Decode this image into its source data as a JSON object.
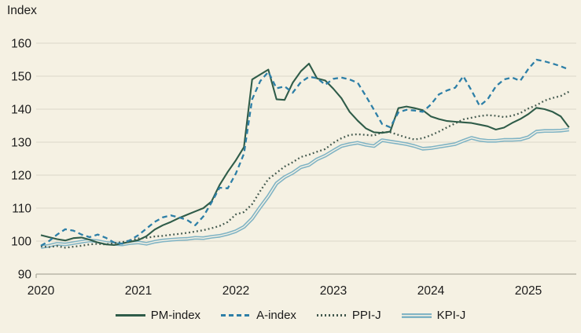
{
  "colors": {
    "background": "#f5f1e3",
    "gridline": "#dcd8c8",
    "axis": "#adab9d",
    "text": "#1c1c1c",
    "pm_index": "#2f5c49",
    "a_index": "#2d7fa7",
    "ppi_j": "#42584d",
    "kpi_j": "#7fb3c4"
  },
  "chart_data": {
    "type": "line",
    "title": "Index",
    "xlabel": "",
    "ylabel": "Index",
    "ylim": [
      90,
      160
    ],
    "grid": "horizontal",
    "legend_position": "bottom-center",
    "y_ticks": [
      90,
      100,
      110,
      120,
      130,
      140,
      150,
      160
    ],
    "x_tick_labels": [
      "2020",
      "2021",
      "2022",
      "2023",
      "2024",
      "2025"
    ],
    "x_frequency": "monthly",
    "x_range": "2020-01 to 2025-06",
    "series": [
      {
        "name": "PM-index",
        "style": "solid",
        "color": "#2f5c49",
        "values": [
          101.8,
          101.2,
          100.6,
          100.2,
          100.9,
          101.1,
          100.4,
          99.6,
          99.0,
          98.8,
          99.3,
          99.8,
          100.3,
          101.5,
          103.5,
          104.8,
          105.8,
          107.0,
          108.0,
          109.0,
          110.0,
          112.0,
          117.0,
          121.0,
          124.5,
          128.5,
          149.0,
          150.5,
          152.0,
          143.0,
          142.8,
          148.0,
          151.5,
          153.8,
          149.3,
          148.7,
          146.2,
          143.3,
          139.2,
          136.5,
          134.2,
          133.0,
          132.8,
          133.2,
          140.3,
          140.8,
          140.3,
          139.7,
          137.8,
          137.0,
          136.4,
          136.2,
          136.0,
          135.8,
          135.3,
          134.8,
          133.8,
          134.4,
          135.8,
          137.0,
          138.5,
          140.4,
          140.0,
          139.2,
          137.8,
          134.5
        ]
      },
      {
        "name": "A-index",
        "style": "dashed",
        "color": "#2d7fa7",
        "values": [
          98.6,
          100.0,
          102.0,
          103.6,
          103.2,
          102.0,
          101.2,
          102.0,
          101.0,
          99.6,
          99.2,
          100.3,
          101.8,
          103.8,
          105.8,
          107.2,
          107.8,
          107.2,
          106.4,
          104.8,
          107.5,
          111.7,
          116.2,
          116.0,
          120.5,
          126.5,
          143.0,
          148.5,
          151.3,
          146.3,
          146.9,
          145.0,
          148.2,
          149.8,
          149.4,
          147.4,
          149.2,
          149.6,
          149.0,
          148.0,
          144.0,
          139.8,
          135.5,
          134.5,
          139.0,
          139.8,
          139.6,
          139.2,
          141.4,
          144.5,
          145.7,
          146.5,
          150.0,
          145.7,
          141.0,
          143.0,
          146.9,
          149.0,
          149.6,
          148.6,
          152.2,
          155.0,
          154.5,
          153.8,
          153.0,
          152.0
        ]
      },
      {
        "name": "PPI-J",
        "style": "dotted",
        "color": "#42584d",
        "values": [
          98.4,
          98.2,
          98.5,
          98.0,
          98.3,
          98.6,
          99.0,
          99.2,
          99.0,
          99.4,
          99.7,
          100.2,
          100.8,
          101.0,
          101.4,
          101.6,
          101.9,
          102.2,
          102.5,
          102.9,
          103.3,
          103.9,
          104.6,
          105.8,
          108.1,
          108.8,
          111.2,
          115.2,
          118.8,
          120.7,
          122.6,
          123.9,
          125.5,
          126.2,
          127.1,
          127.9,
          129.8,
          131.2,
          132.2,
          132.4,
          132.2,
          132.0,
          133.0,
          133.0,
          132.2,
          131.4,
          130.8,
          131.2,
          132.1,
          133.2,
          134.5,
          135.7,
          136.9,
          137.4,
          137.9,
          138.2,
          138.0,
          137.6,
          138.0,
          138.8,
          140.2,
          141.2,
          142.6,
          143.4,
          144.0,
          145.3
        ]
      },
      {
        "name": "KPI-J",
        "style": "double-solid",
        "color": "#7fb3c4",
        "values": [
          98.2,
          98.6,
          99.2,
          99.0,
          99.4,
          99.8,
          100.2,
          100.0,
          99.5,
          99.2,
          99.0,
          99.4,
          99.6,
          99.2,
          99.8,
          100.2,
          100.4,
          100.6,
          100.7,
          101.0,
          100.9,
          101.3,
          101.6,
          102.2,
          103.0,
          104.3,
          106.8,
          110.3,
          113.6,
          117.5,
          119.4,
          120.7,
          122.4,
          123.1,
          124.8,
          125.9,
          127.4,
          128.8,
          129.4,
          129.8,
          129.2,
          128.8,
          130.6,
          130.2,
          129.8,
          129.4,
          128.8,
          128.0,
          128.2,
          128.6,
          129.0,
          129.4,
          130.4,
          131.3,
          130.7,
          130.4,
          130.4,
          130.7,
          130.7,
          130.8,
          131.5,
          133.2,
          133.4,
          133.4,
          133.5,
          133.8
        ]
      }
    ]
  }
}
